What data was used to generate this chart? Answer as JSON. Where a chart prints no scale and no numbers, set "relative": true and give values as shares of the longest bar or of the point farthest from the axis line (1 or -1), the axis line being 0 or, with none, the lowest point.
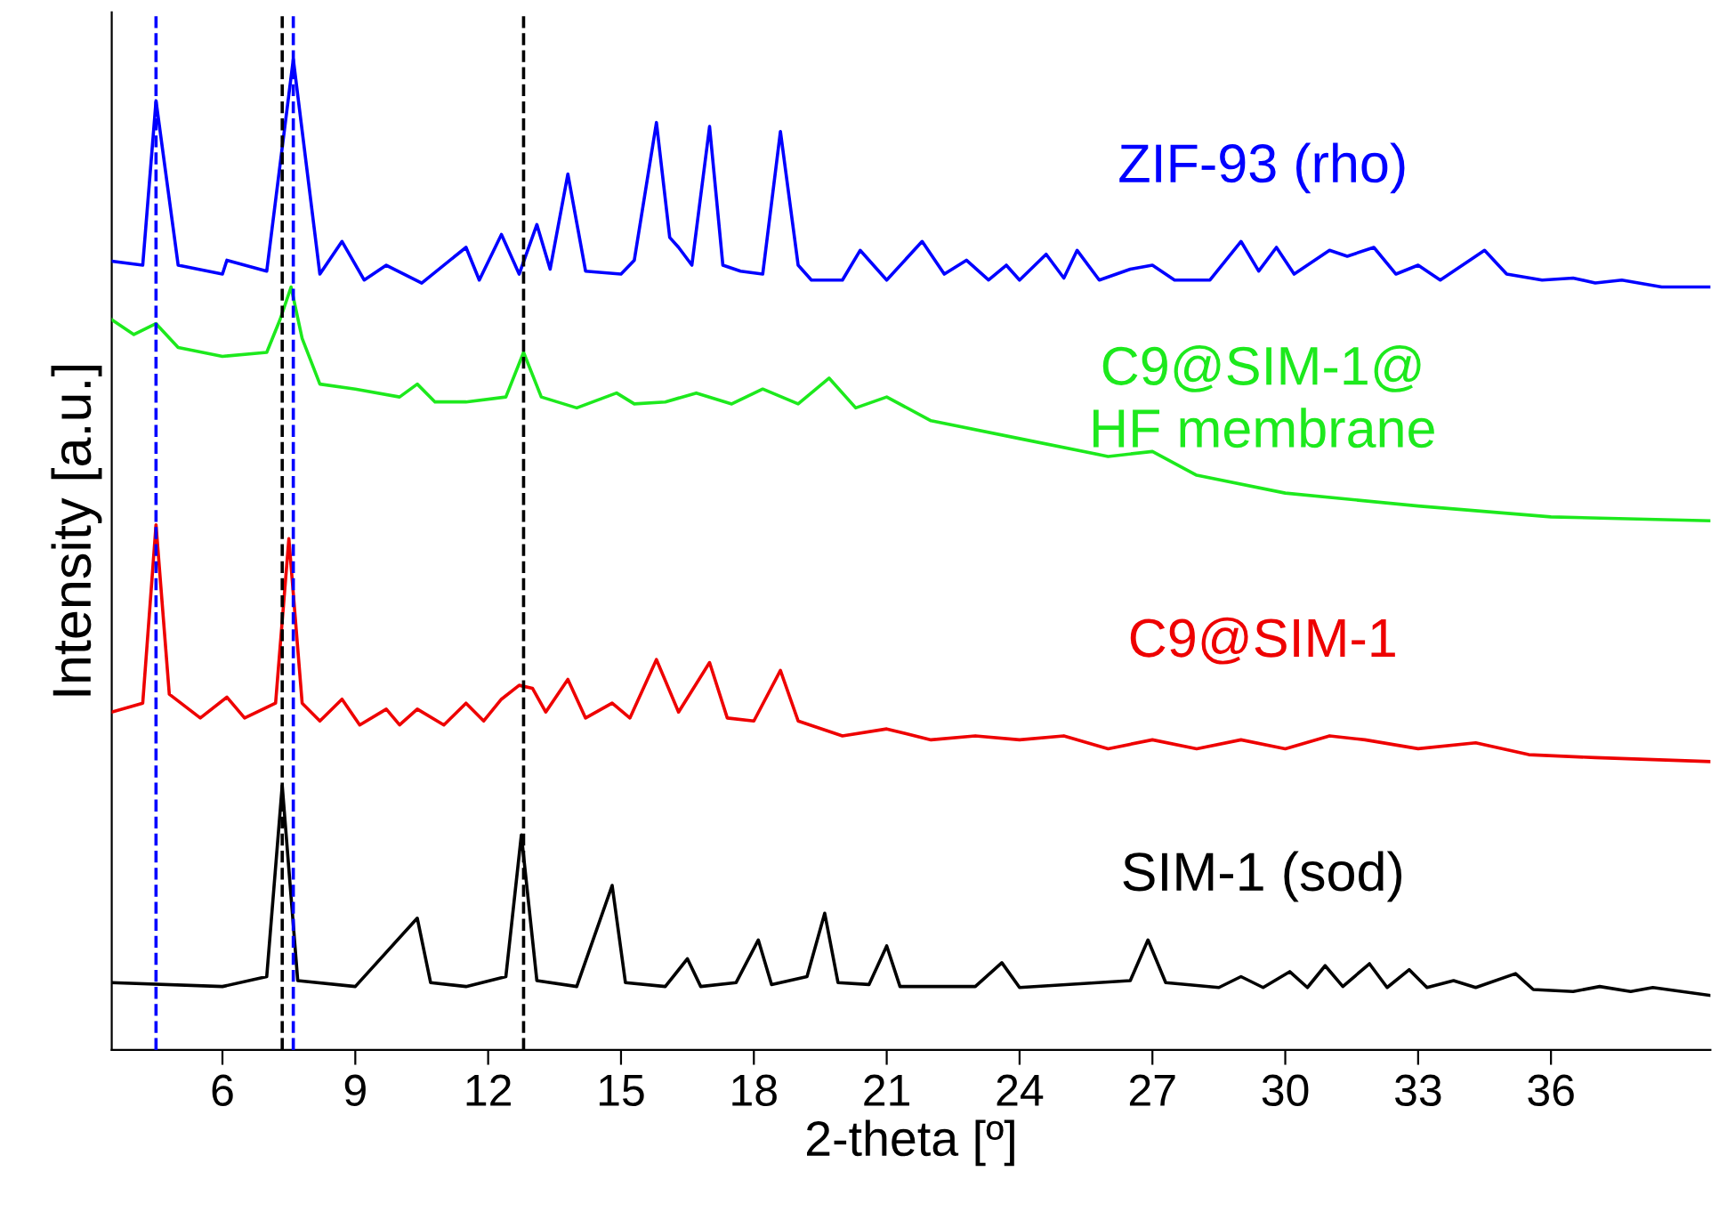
{
  "chart_data": {
    "type": "line",
    "relative": true,
    "xlabel": "2-theta [º]",
    "ylabel": "Intensity [a.u.]",
    "xlim": [
      3.5,
      39.6
    ],
    "xticks": [
      6,
      9,
      12,
      15,
      18,
      21,
      24,
      27,
      30,
      33,
      36
    ],
    "grid": false,
    "legend": false,
    "marker": "none",
    "line_style": "solid",
    "series": [
      {
        "name": "ZIF-93 (rho)",
        "color": "#0000ff",
        "x": [
          3.5,
          4.2,
          4.5,
          5,
          6,
          6.1,
          7,
          7.6,
          8.2,
          8.7,
          9.2,
          9.7,
          10.5,
          11.5,
          11.8,
          12.3,
          12.7,
          13.1,
          13.4,
          13.8,
          14.2,
          15,
          15.3,
          15.8,
          16.1,
          16.3,
          16.6,
          17,
          17.3,
          17.7,
          18.2,
          18.6,
          19,
          19.3,
          20,
          20.4,
          21,
          21.8,
          22.3,
          22.8,
          23.3,
          23.7,
          24,
          24.6,
          25,
          25.3,
          25.8,
          26.5,
          27,
          27.5,
          28.3,
          29,
          29.4,
          29.8,
          30.2,
          31,
          31.4,
          32,
          32.5,
          33,
          33.5,
          34.3,
          34.5,
          35,
          35.8,
          36.5,
          37,
          37.6,
          38.5,
          39.6
        ],
        "values": [
          0.796,
          0.792,
          0.958,
          0.792,
          0.783,
          0.797,
          0.786,
          1.0,
          0.783,
          0.816,
          0.777,
          0.792,
          0.774,
          0.81,
          0.777,
          0.823,
          0.783,
          0.833,
          0.788,
          0.884,
          0.786,
          0.783,
          0.797,
          0.936,
          0.82,
          0.81,
          0.792,
          0.932,
          0.792,
          0.786,
          0.783,
          0.927,
          0.792,
          0.777,
          0.777,
          0.807,
          0.777,
          0.816,
          0.783,
          0.797,
          0.777,
          0.792,
          0.777,
          0.803,
          0.779,
          0.807,
          0.777,
          0.788,
          0.792,
          0.777,
          0.777,
          0.816,
          0.786,
          0.81,
          0.783,
          0.807,
          0.801,
          0.81,
          0.783,
          0.792,
          0.777,
          0.801,
          0.807,
          0.783,
          0.777,
          0.779,
          0.774,
          0.777,
          0.77,
          0.77
        ]
      },
      {
        "name": "C9@SIM-1@\nHF membrane",
        "color": "#1de91d",
        "x": [
          3.5,
          4,
          4.5,
          5,
          6,
          7,
          7.3,
          7.55,
          7.8,
          8.2,
          9,
          10,
          10.4,
          10.8,
          11.5,
          12.4,
          12.8,
          13.2,
          14,
          14.9,
          15.3,
          16,
          16.7,
          17.5,
          18.2,
          19,
          19.7,
          20.3,
          21,
          22,
          24,
          26,
          27,
          28,
          30,
          33,
          36,
          39.6
        ],
        "values": [
          0.737,
          0.722,
          0.733,
          0.709,
          0.7,
          0.704,
          0.737,
          0.77,
          0.718,
          0.672,
          0.667,
          0.659,
          0.672,
          0.654,
          0.654,
          0.659,
          0.704,
          0.659,
          0.648,
          0.663,
          0.652,
          0.654,
          0.663,
          0.652,
          0.667,
          0.652,
          0.678,
          0.648,
          0.659,
          0.635,
          0.617,
          0.599,
          0.604,
          0.58,
          0.562,
          0.549,
          0.538,
          0.534
        ]
      },
      {
        "name": "C9@SIM-1",
        "color": "#ee0000",
        "x": [
          3.5,
          4.2,
          4.5,
          4.8,
          5.5,
          6.1,
          6.5,
          7.2,
          7.5,
          7.8,
          8.2,
          8.7,
          9.1,
          9.7,
          10,
          10.4,
          11,
          11.5,
          11.9,
          12.3,
          12.7,
          13,
          13.3,
          13.8,
          14.2,
          14.8,
          15.2,
          15.8,
          16.3,
          17,
          17.4,
          18,
          18.6,
          19,
          20,
          21,
          22,
          23,
          24,
          25,
          26,
          27,
          28,
          29,
          30,
          31,
          31.8,
          33,
          34.3,
          35.5,
          37,
          39.6
        ],
        "values": [
          0.341,
          0.35,
          0.53,
          0.359,
          0.335,
          0.356,
          0.335,
          0.35,
          0.516,
          0.35,
          0.332,
          0.354,
          0.328,
          0.344,
          0.328,
          0.344,
          0.328,
          0.35,
          0.332,
          0.354,
          0.368,
          0.365,
          0.341,
          0.374,
          0.335,
          0.35,
          0.335,
          0.394,
          0.341,
          0.391,
          0.335,
          0.332,
          0.383,
          0.332,
          0.317,
          0.324,
          0.313,
          0.317,
          0.313,
          0.317,
          0.304,
          0.313,
          0.304,
          0.313,
          0.304,
          0.317,
          0.313,
          0.304,
          0.31,
          0.298,
          0.295,
          0.291
        ]
      },
      {
        "name": "SIM-1 (sod)",
        "color": "#000000",
        "x": [
          3.5,
          6,
          7,
          7.35,
          7.7,
          9,
          10.4,
          10.7,
          11.5,
          12.4,
          12.75,
          13.1,
          14,
          14.8,
          15.1,
          16,
          16.5,
          16.8,
          17.6,
          18.1,
          18.4,
          19.2,
          19.6,
          19.9,
          20.6,
          21,
          21.3,
          23,
          23.6,
          24,
          26.5,
          26.9,
          27.3,
          28.5,
          29,
          29.5,
          30.1,
          30.5,
          30.9,
          31.3,
          31.9,
          32.3,
          32.8,
          33.2,
          33.8,
          34.3,
          35.2,
          35.6,
          36.5,
          37.1,
          37.8,
          38.3,
          39.6
        ],
        "values": [
          0.068,
          0.064,
          0.074,
          0.267,
          0.07,
          0.064,
          0.133,
          0.068,
          0.064,
          0.074,
          0.217,
          0.07,
          0.064,
          0.166,
          0.068,
          0.064,
          0.092,
          0.064,
          0.068,
          0.111,
          0.066,
          0.074,
          0.138,
          0.068,
          0.066,
          0.105,
          0.064,
          0.064,
          0.088,
          0.063,
          0.07,
          0.111,
          0.068,
          0.063,
          0.074,
          0.063,
          0.079,
          0.063,
          0.085,
          0.064,
          0.087,
          0.063,
          0.081,
          0.063,
          0.07,
          0.063,
          0.077,
          0.061,
          0.059,
          0.064,
          0.059,
          0.063,
          0.055
        ]
      }
    ],
    "ref_lines": [
      {
        "axis": "x",
        "value": 4.5,
        "color": "#0000ff",
        "line_style": "dashed"
      },
      {
        "axis": "x",
        "value": 7.6,
        "color": "#0000ff",
        "line_style": "dashed"
      },
      {
        "axis": "x",
        "value": 7.35,
        "color": "#000000",
        "line_style": "dashed"
      },
      {
        "axis": "x",
        "value": 12.8,
        "color": "#000000",
        "line_style": "dashed"
      }
    ]
  }
}
